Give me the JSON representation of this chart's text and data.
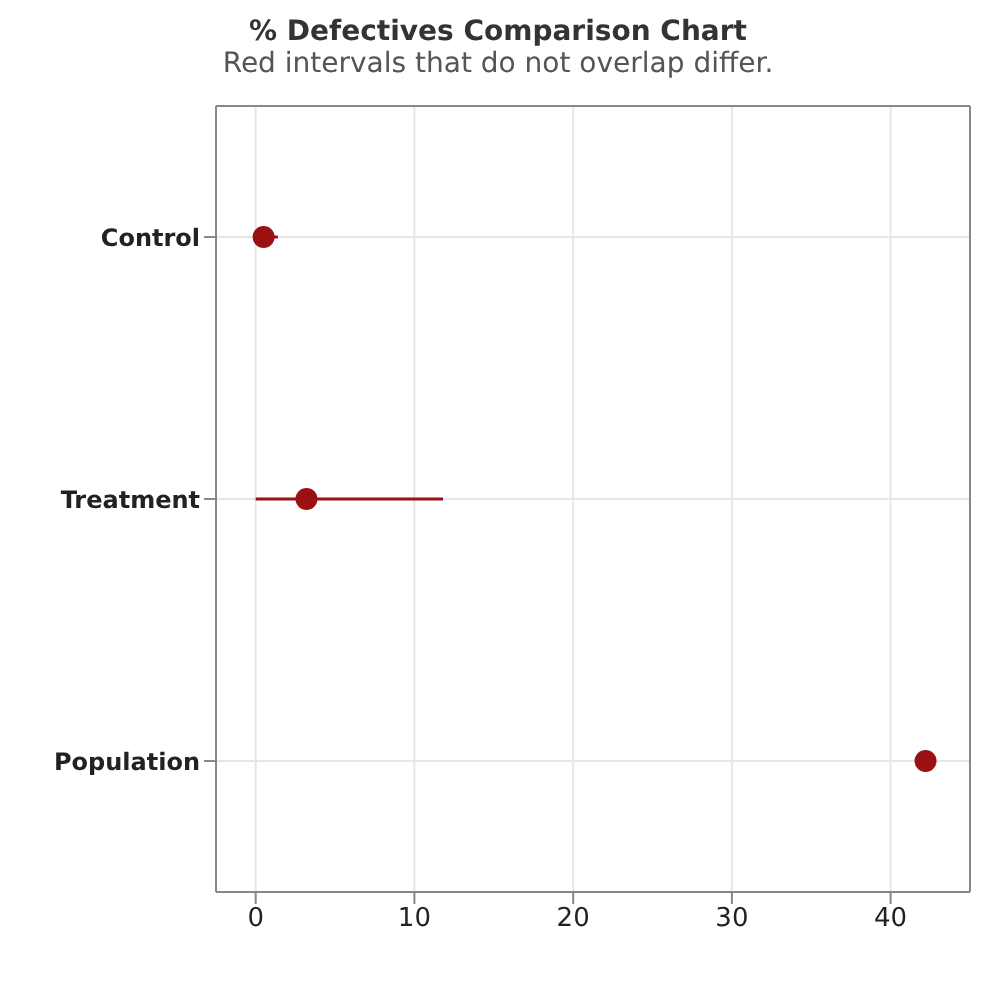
{
  "chart_data": {
    "type": "scatter",
    "title": "% Defectives Comparison Chart",
    "subtitle": "Red intervals that do not overlap differ.",
    "orientation": "horizontal",
    "categories": [
      "Control",
      "Treatment",
      "Population"
    ],
    "values": [
      0.5,
      3.2,
      42.2
    ],
    "errors": [
      [
        0,
        1.4
      ],
      [
        0,
        11.8
      ],
      [
        41.8,
        42.6
      ]
    ],
    "color": "#9b1111",
    "xlim": [
      -2.5,
      45
    ],
    "xticks": [
      0,
      10,
      20,
      30,
      40
    ],
    "grid": true,
    "marker": "circle"
  }
}
